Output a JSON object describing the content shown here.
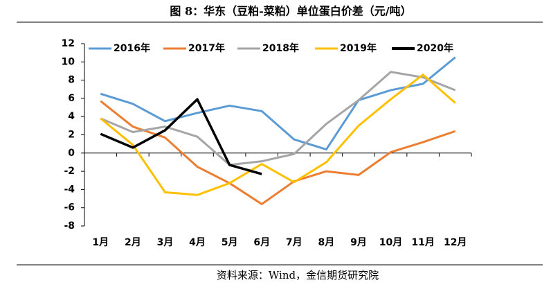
{
  "chart_data": {
    "type": "line",
    "title": "图 8：华东（豆粕-菜粕）单位蛋白价差（元/吨）",
    "source": "资料来源：Wind，金信期货研究院",
    "categories": [
      "1月",
      "2月",
      "3月",
      "4月",
      "5月",
      "6月",
      "7月",
      "8月",
      "9月",
      "10月",
      "11月",
      "12月"
    ],
    "series": [
      {
        "name": "2016年",
        "color": "#5b9bd5",
        "values": [
          6.5,
          5.4,
          3.5,
          4.4,
          5.2,
          4.6,
          1.5,
          0.4,
          5.8,
          6.9,
          7.6,
          10.5
        ]
      },
      {
        "name": "2017年",
        "color": "#ed7d31",
        "values": [
          5.7,
          2.9,
          1.7,
          -1.5,
          -3.3,
          -5.6,
          -3.1,
          -2.0,
          -2.4,
          0.1,
          1.2,
          2.4
        ]
      },
      {
        "name": "2018年",
        "color": "#a5a5a5",
        "values": [
          3.8,
          2.3,
          2.9,
          1.8,
          -1.3,
          -0.9,
          -0.1,
          3.2,
          5.8,
          8.9,
          8.3,
          6.9
        ]
      },
      {
        "name": "2019年",
        "color": "#ffc000",
        "values": [
          3.8,
          0.9,
          -4.3,
          -4.6,
          -3.3,
          -1.2,
          -3.2,
          -1.0,
          3.0,
          5.9,
          8.6,
          5.5
        ]
      },
      {
        "name": "2020年",
        "color": "#000000",
        "values": [
          2.1,
          0.6,
          2.5,
          5.9,
          -1.3,
          -2.3,
          null,
          null,
          null,
          null,
          null,
          null
        ]
      }
    ],
    "ylim": [
      -8,
      12
    ],
    "yticks": [
      -8,
      -6,
      -4,
      -2,
      0,
      2,
      4,
      6,
      8,
      10,
      12
    ],
    "grid": false,
    "legend": "top"
  }
}
